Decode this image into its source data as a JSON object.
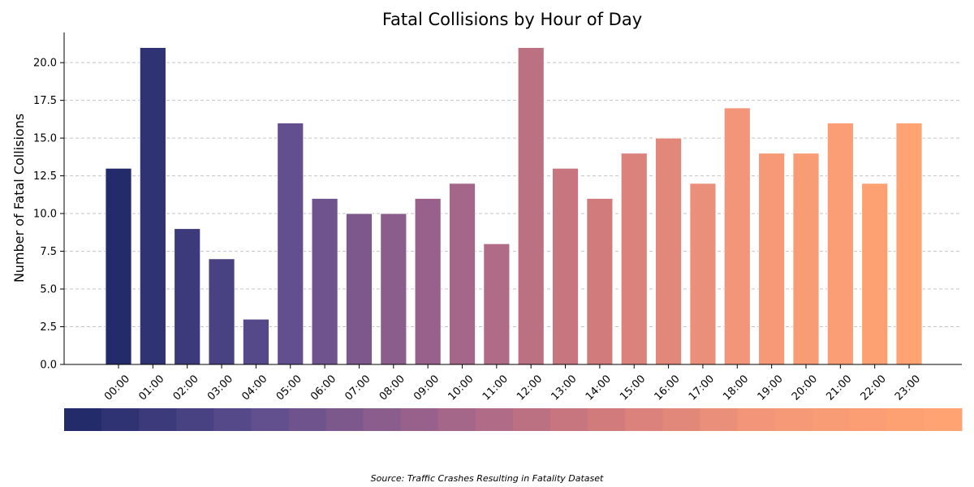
{
  "chart_data": {
    "type": "bar",
    "title": "Fatal Collisions by Hour of Day",
    "xlabel": "",
    "ylabel": "Number of Fatal Collisions",
    "categories": [
      "00:00",
      "01:00",
      "02:00",
      "03:00",
      "04:00",
      "05:00",
      "06:00",
      "07:00",
      "08:00",
      "09:00",
      "10:00",
      "11:00",
      "12:00",
      "13:00",
      "14:00",
      "15:00",
      "16:00",
      "17:00",
      "18:00",
      "19:00",
      "20:00",
      "21:00",
      "22:00",
      "23:00"
    ],
    "values": [
      13,
      21,
      9,
      7,
      3,
      16,
      11,
      10,
      10,
      11,
      12,
      8,
      21,
      13,
      11,
      14,
      15,
      12,
      17,
      14,
      14,
      16,
      12,
      16
    ],
    "ylim": [
      0,
      22
    ],
    "yticks": [
      "0.0",
      "2.5",
      "5.0",
      "7.5",
      "10.0",
      "12.5",
      "15.0",
      "17.5",
      "20.0"
    ],
    "grid": true,
    "colormap": "gradient dark navy to light orange",
    "color_stops": [
      "#232b6b",
      "#5c4d8e",
      "#9b628c",
      "#d07a7c",
      "#f59878",
      "#ffa372"
    ],
    "source": "Source: Traffic Crashes Resulting in Fatality Dataset"
  }
}
